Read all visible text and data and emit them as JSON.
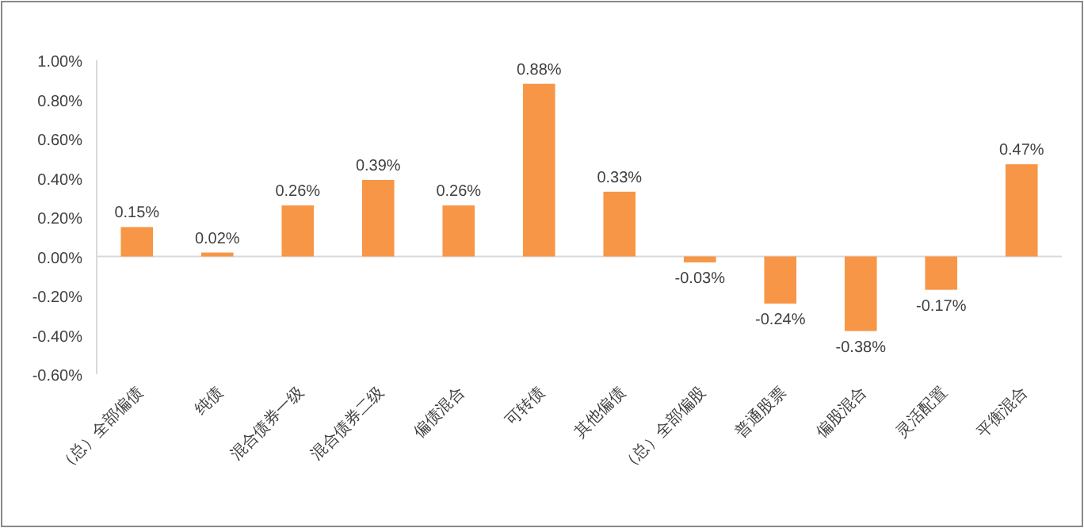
{
  "chart_data": {
    "type": "bar",
    "categories": [
      "（总）全部偏债",
      "纯债",
      "混合债券一级",
      "混合债券二级",
      "偏债混合",
      "可转债",
      "其他偏债",
      "（总）全部偏股",
      "普通股票",
      "偏股混合",
      "灵活配置",
      "平衡混合"
    ],
    "values": [
      0.15,
      0.02,
      0.26,
      0.39,
      0.26,
      0.88,
      0.33,
      -0.03,
      -0.24,
      -0.38,
      -0.17,
      0.47
    ],
    "value_labels": [
      "0.15%",
      "0.02%",
      "0.26%",
      "0.39%",
      "0.26%",
      "0.88%",
      "0.33%",
      "-0.03%",
      "-0.24%",
      "-0.38%",
      "-0.17%",
      "0.47%"
    ],
    "color": "#f79646",
    "ylim": [
      -0.6,
      1.0
    ],
    "yticks": [
      {
        "value": -0.6,
        "label": "-0.60%"
      },
      {
        "value": -0.4,
        "label": "-0.40%"
      },
      {
        "value": -0.2,
        "label": "-0.20%"
      },
      {
        "value": 0,
        "label": "0.00%"
      },
      {
        "value": 0.2,
        "label": "0.20%"
      },
      {
        "value": 0.4,
        "label": "0.40%"
      },
      {
        "value": 0.6,
        "label": "0.60%"
      },
      {
        "value": 0.8,
        "label": "0.80%"
      },
      {
        "value": 1.0,
        "label": "1.00%"
      }
    ],
    "data_labels": false
  }
}
